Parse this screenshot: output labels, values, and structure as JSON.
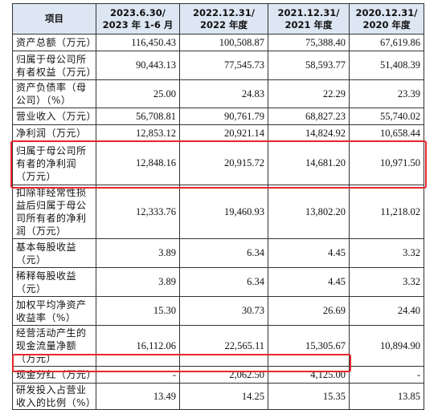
{
  "header": {
    "item": "项目",
    "periods": [
      {
        "line1": "2023.6.30/",
        "line2": "2023 年 1-6 月"
      },
      {
        "line1": "2022.12.31/",
        "line2": "2022 年度"
      },
      {
        "line1": "2021.12.31/",
        "line2": "2021 年度"
      },
      {
        "line1": "2020.12.31/",
        "line2": "2020 年度"
      }
    ]
  },
  "rows": [
    {
      "label": "资产总额（万元）",
      "values": [
        "116,450.43",
        "100,508.87",
        "75,388.40",
        "67,619.86"
      ]
    },
    {
      "label": "归属于母公司所有者权益（万元）",
      "values": [
        "90,443.13",
        "77,545.73",
        "58,593.77",
        "51,408.39"
      ]
    },
    {
      "label": "资产负债率（母公司）（%）",
      "values": [
        "25.00",
        "24.83",
        "22.29",
        "23.39"
      ]
    },
    {
      "label": "营业收入（万元）",
      "values": [
        "56,708.81",
        "90,761.79",
        "68,827.23",
        "55,740.02"
      ]
    },
    {
      "label": "净利润（万元）",
      "values": [
        "12,853.12",
        "20,921.14",
        "14,824.92",
        "10,658.44"
      ]
    },
    {
      "label": "归属于母公司所有者的净利润（万元）",
      "values": [
        "12,848.16",
        "20,915.72",
        "14,681.20",
        "10,971.50"
      ]
    },
    {
      "label": "扣除非经常性损益后归属于母公司所有者的净利润（万元）",
      "values": [
        "12,333.76",
        "19,460.93",
        "13,802.20",
        "11,218.02"
      ]
    },
    {
      "label": "基本每股收益（元）",
      "values": [
        "3.89",
        "6.34",
        "4.45",
        "3.32"
      ]
    },
    {
      "label": "稀释每股收益（元）",
      "values": [
        "3.89",
        "6.34",
        "4.45",
        "3.32"
      ]
    },
    {
      "label": "加权平均净资产收益率（%）",
      "values": [
        "15.30",
        "30.73",
        "26.69",
        "24.40"
      ]
    },
    {
      "label": "经营活动产生的现金流量净额（万元）",
      "values": [
        "16,112.06",
        "22,565.11",
        "15,305.67",
        "10,894.90"
      ]
    },
    {
      "label": "现金分红（万元）",
      "values": [
        "-",
        "2,062.50",
        "4,125.00",
        "-"
      ]
    },
    {
      "label": "研发投入占营业收入的比例（%）",
      "values": [
        "13.49",
        "14.25",
        "15.35",
        "13.85"
      ]
    }
  ],
  "highlight_color": "#e8262b",
  "header_background": "#dde6f3"
}
